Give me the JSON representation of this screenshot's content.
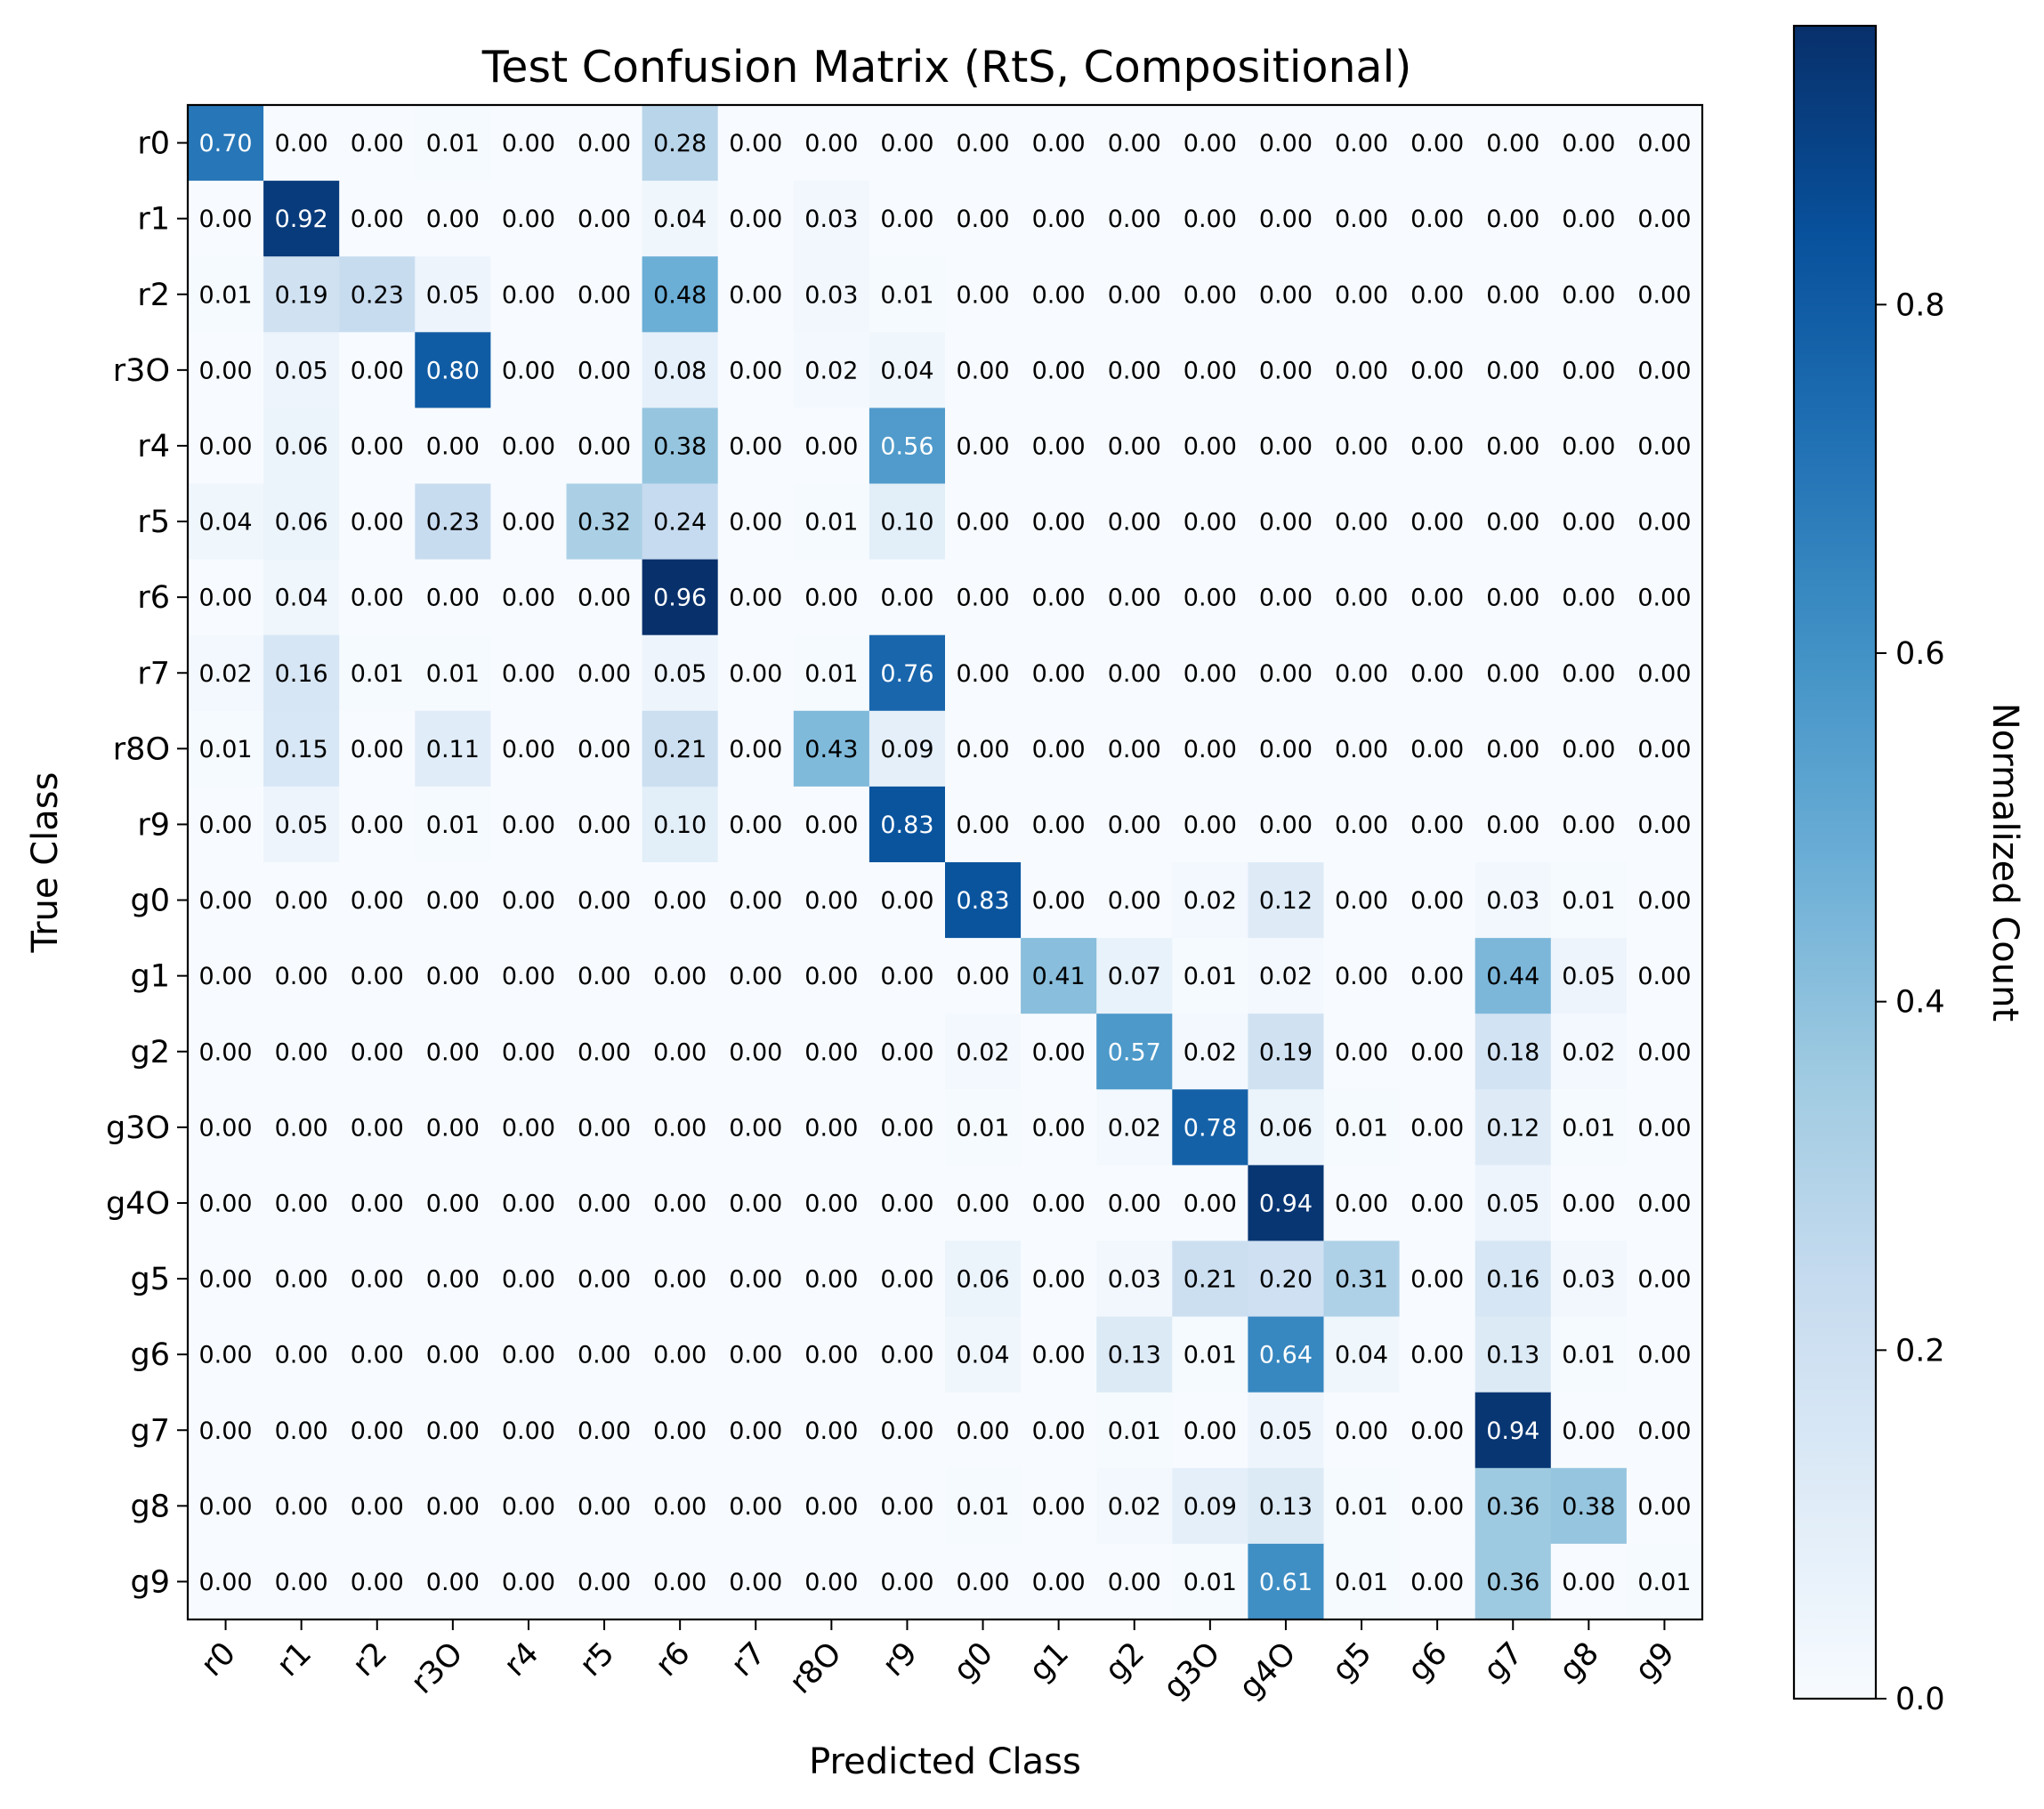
{
  "chart_data": {
    "type": "heatmap",
    "title": "Test Confusion Matrix (RtS, Compositional)",
    "xlabel": "Predicted Class",
    "ylabel": "True Class",
    "x_categories": [
      "r0",
      "r1",
      "r2",
      "r3O",
      "r4",
      "r5",
      "r6",
      "r7",
      "r8O",
      "r9",
      "g0",
      "g1",
      "g2",
      "g3O",
      "g4O",
      "g5",
      "g6",
      "g7",
      "g8",
      "g9"
    ],
    "y_categories": [
      "r0",
      "r1",
      "r2",
      "r3O",
      "r4",
      "r5",
      "r6",
      "r7",
      "r8O",
      "r9",
      "g0",
      "g1",
      "g2",
      "g3O",
      "g4O",
      "g5",
      "g6",
      "g7",
      "g8",
      "g9"
    ],
    "values": [
      [
        0.7,
        0.0,
        0.0,
        0.01,
        0.0,
        0.0,
        0.28,
        0.0,
        0.0,
        0.0,
        0.0,
        0.0,
        0.0,
        0.0,
        0.0,
        0.0,
        0.0,
        0.0,
        0.0,
        0.0
      ],
      [
        0.0,
        0.92,
        0.0,
        0.0,
        0.0,
        0.0,
        0.04,
        0.0,
        0.03,
        0.0,
        0.0,
        0.0,
        0.0,
        0.0,
        0.0,
        0.0,
        0.0,
        0.0,
        0.0,
        0.0
      ],
      [
        0.01,
        0.19,
        0.23,
        0.05,
        0.0,
        0.0,
        0.48,
        0.0,
        0.03,
        0.01,
        0.0,
        0.0,
        0.0,
        0.0,
        0.0,
        0.0,
        0.0,
        0.0,
        0.0,
        0.0
      ],
      [
        0.0,
        0.05,
        0.0,
        0.8,
        0.0,
        0.0,
        0.08,
        0.0,
        0.02,
        0.04,
        0.0,
        0.0,
        0.0,
        0.0,
        0.0,
        0.0,
        0.0,
        0.0,
        0.0,
        0.0
      ],
      [
        0.0,
        0.06,
        0.0,
        0.0,
        0.0,
        0.0,
        0.38,
        0.0,
        0.0,
        0.56,
        0.0,
        0.0,
        0.0,
        0.0,
        0.0,
        0.0,
        0.0,
        0.0,
        0.0,
        0.0
      ],
      [
        0.04,
        0.06,
        0.0,
        0.23,
        0.0,
        0.32,
        0.24,
        0.0,
        0.01,
        0.1,
        0.0,
        0.0,
        0.0,
        0.0,
        0.0,
        0.0,
        0.0,
        0.0,
        0.0,
        0.0
      ],
      [
        0.0,
        0.04,
        0.0,
        0.0,
        0.0,
        0.0,
        0.96,
        0.0,
        0.0,
        0.0,
        0.0,
        0.0,
        0.0,
        0.0,
        0.0,
        0.0,
        0.0,
        0.0,
        0.0,
        0.0
      ],
      [
        0.02,
        0.16,
        0.01,
        0.01,
        0.0,
        0.0,
        0.05,
        0.0,
        0.01,
        0.76,
        0.0,
        0.0,
        0.0,
        0.0,
        0.0,
        0.0,
        0.0,
        0.0,
        0.0,
        0.0
      ],
      [
        0.01,
        0.15,
        0.0,
        0.11,
        0.0,
        0.0,
        0.21,
        0.0,
        0.43,
        0.09,
        0.0,
        0.0,
        0.0,
        0.0,
        0.0,
        0.0,
        0.0,
        0.0,
        0.0,
        0.0
      ],
      [
        0.0,
        0.05,
        0.0,
        0.01,
        0.0,
        0.0,
        0.1,
        0.0,
        0.0,
        0.83,
        0.0,
        0.0,
        0.0,
        0.0,
        0.0,
        0.0,
        0.0,
        0.0,
        0.0,
        0.0
      ],
      [
        0.0,
        0.0,
        0.0,
        0.0,
        0.0,
        0.0,
        0.0,
        0.0,
        0.0,
        0.0,
        0.83,
        0.0,
        0.0,
        0.02,
        0.12,
        0.0,
        0.0,
        0.03,
        0.01,
        0.0
      ],
      [
        0.0,
        0.0,
        0.0,
        0.0,
        0.0,
        0.0,
        0.0,
        0.0,
        0.0,
        0.0,
        0.0,
        0.41,
        0.07,
        0.01,
        0.02,
        0.0,
        0.0,
        0.44,
        0.05,
        0.0
      ],
      [
        0.0,
        0.0,
        0.0,
        0.0,
        0.0,
        0.0,
        0.0,
        0.0,
        0.0,
        0.0,
        0.02,
        0.0,
        0.57,
        0.02,
        0.19,
        0.0,
        0.0,
        0.18,
        0.02,
        0.0
      ],
      [
        0.0,
        0.0,
        0.0,
        0.0,
        0.0,
        0.0,
        0.0,
        0.0,
        0.0,
        0.0,
        0.01,
        0.0,
        0.02,
        0.78,
        0.06,
        0.01,
        0.0,
        0.12,
        0.01,
        0.0
      ],
      [
        0.0,
        0.0,
        0.0,
        0.0,
        0.0,
        0.0,
        0.0,
        0.0,
        0.0,
        0.0,
        0.0,
        0.0,
        0.0,
        0.0,
        0.94,
        0.0,
        0.0,
        0.05,
        0.0,
        0.0
      ],
      [
        0.0,
        0.0,
        0.0,
        0.0,
        0.0,
        0.0,
        0.0,
        0.0,
        0.0,
        0.0,
        0.06,
        0.0,
        0.03,
        0.21,
        0.2,
        0.31,
        0.0,
        0.16,
        0.03,
        0.0
      ],
      [
        0.0,
        0.0,
        0.0,
        0.0,
        0.0,
        0.0,
        0.0,
        0.0,
        0.0,
        0.0,
        0.04,
        0.0,
        0.13,
        0.01,
        0.64,
        0.04,
        0.0,
        0.13,
        0.01,
        0.0
      ],
      [
        0.0,
        0.0,
        0.0,
        0.0,
        0.0,
        0.0,
        0.0,
        0.0,
        0.0,
        0.0,
        0.0,
        0.0,
        0.01,
        0.0,
        0.05,
        0.0,
        0.0,
        0.94,
        0.0,
        0.0
      ],
      [
        0.0,
        0.0,
        0.0,
        0.0,
        0.0,
        0.0,
        0.0,
        0.0,
        0.0,
        0.0,
        0.01,
        0.0,
        0.02,
        0.09,
        0.13,
        0.01,
        0.0,
        0.36,
        0.38,
        0.0
      ],
      [
        0.0,
        0.0,
        0.0,
        0.0,
        0.0,
        0.0,
        0.0,
        0.0,
        0.0,
        0.0,
        0.0,
        0.0,
        0.0,
        0.01,
        0.61,
        0.01,
        0.0,
        0.36,
        0.0,
        0.01
      ]
    ],
    "colormap": "Blues",
    "colorbar": {
      "label": "Normalized Count",
      "range": [
        0,
        0.96
      ],
      "ticks": [
        0.0,
        0.2,
        0.4,
        0.6,
        0.8
      ],
      "tick_labels": [
        "0.0",
        "0.2",
        "0.4",
        "0.6",
        "0.8"
      ]
    },
    "grid": false,
    "value_format": "0.00"
  }
}
